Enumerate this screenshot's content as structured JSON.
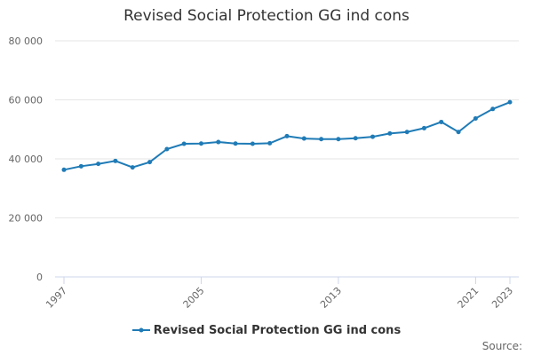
{
  "title": "Revised Social Protection GG ind cons",
  "source_label": "Source:",
  "colors": {
    "series": "#1f7bb6",
    "grid": "#e6e6e6",
    "axis": "#ccd6eb"
  },
  "chart_data": {
    "type": "line",
    "title": "Revised Social Protection GG ind cons",
    "xlabel": "",
    "ylabel": "",
    "x": [
      1997,
      1998,
      1999,
      2000,
      2001,
      2002,
      2003,
      2004,
      2005,
      2006,
      2007,
      2008,
      2009,
      2010,
      2011,
      2012,
      2013,
      2014,
      2015,
      2016,
      2017,
      2018,
      2019,
      2020,
      2021,
      2022,
      2023
    ],
    "series": [
      {
        "name": "Revised Social Protection GG ind cons",
        "values": [
          36300,
          37500,
          38300,
          39300,
          37100,
          38900,
          43300,
          45100,
          45200,
          45700,
          45200,
          45100,
          45300,
          47700,
          46900,
          46700,
          46700,
          47000,
          47500,
          48600,
          49100,
          50400,
          52500,
          49100,
          53700,
          56900,
          59200
        ]
      }
    ],
    "ylim": [
      0,
      80000
    ],
    "yticks": [
      0,
      20000,
      40000,
      60000,
      80000
    ],
    "ytick_labels": [
      "0",
      "20 000",
      "40 000",
      "60 000",
      "80 000"
    ],
    "xticks": [
      1997,
      2005,
      2013,
      2021,
      2023
    ],
    "xtick_labels": [
      "1997",
      "2005",
      "2013",
      "2021",
      "2023"
    ],
    "grid": true,
    "legend_position": "bottom-center"
  }
}
